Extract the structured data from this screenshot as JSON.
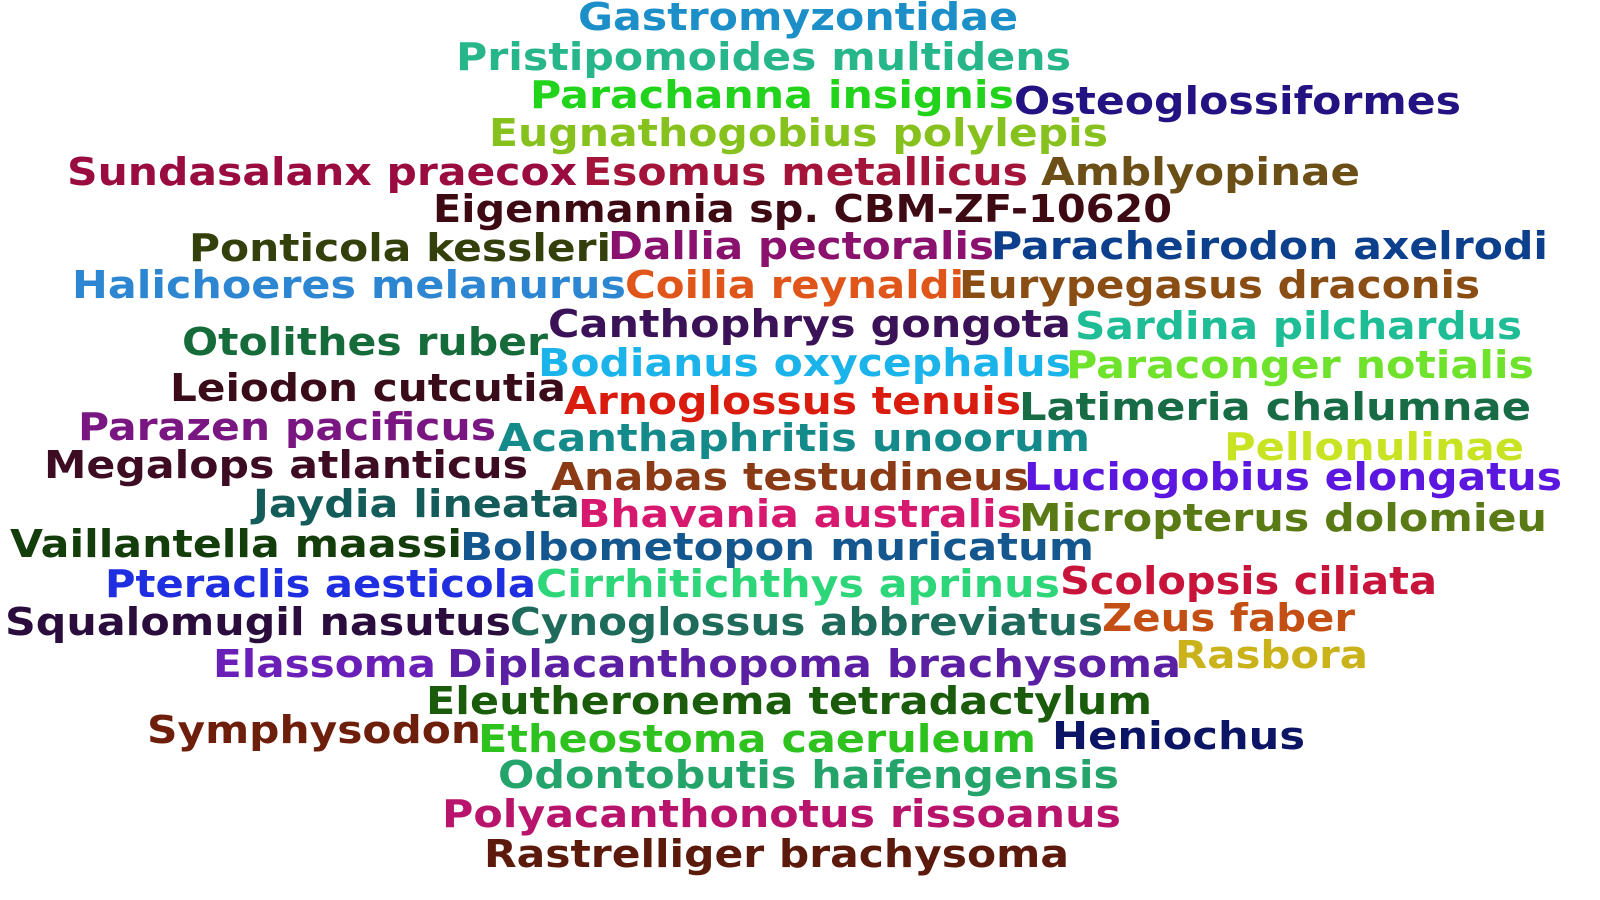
{
  "words": [
    {
      "text": "Gastromyzontidae",
      "color": "#1c8ec8"
    },
    {
      "text": "Pristipomoides multidens",
      "color": "#27b68a"
    },
    {
      "text": "Parachanna insignis",
      "color": "#21d41b"
    },
    {
      "text": "Osteoglossiformes",
      "color": "#231282"
    },
    {
      "text": "Eugnathogobius polylepis",
      "color": "#86c11e"
    },
    {
      "text": "Sundasalanx praecox",
      "color": "#9a0c3f"
    },
    {
      "text": "Esomus metallicus",
      "color": "#a3133a"
    },
    {
      "text": "Amblyopinae",
      "color": "#6b4f16"
    },
    {
      "text": "Eigenmannia sp. CBM-ZF-10620",
      "color": "#3d0a14"
    },
    {
      "text": "Ponticola kessleri",
      "color": "#33400b"
    },
    {
      "text": "Dallia pectoralis",
      "color": "#8a116e"
    },
    {
      "text": "Paracheirodon axelrodi",
      "color": "#0c3f8c"
    },
    {
      "text": "Halichoeres melanurus",
      "color": "#2c86d1"
    },
    {
      "text": "Coilia reynaldi",
      "color": "#e0551a"
    },
    {
      "text": "Eurypegasus draconis",
      "color": "#8a4d14"
    },
    {
      "text": "Canthophrys gongota",
      "color": "#3b1157"
    },
    {
      "text": "Sardina pilchardus",
      "color": "#1fbd95"
    },
    {
      "text": "Otolithes ruber",
      "color": "#166b3a"
    },
    {
      "text": "Bodianus oxycephalus",
      "color": "#1ab3ea"
    },
    {
      "text": "Paraconger notialis",
      "color": "#6fe22b"
    },
    {
      "text": "Leiodon cutcutia",
      "color": "#3a0c19"
    },
    {
      "text": "Arnoglossus tenuis",
      "color": "#d91c0e"
    },
    {
      "text": "Latimeria chalumnae",
      "color": "#176b45"
    },
    {
      "text": "Parazen pacificus",
      "color": "#7a1682"
    },
    {
      "text": "Acanthaphritis unoorum",
      "color": "#148a8a"
    },
    {
      "text": "Pellonulinae",
      "color": "#c8e322"
    },
    {
      "text": "Megalops atlanticus",
      "color": "#3d0c22"
    },
    {
      "text": "Anabas testudineus",
      "color": "#8a3a14"
    },
    {
      "text": "Luciogobius elongatus",
      "color": "#5b17e0"
    },
    {
      "text": "Jaydia lineata",
      "color": "#145c5a"
    },
    {
      "text": "Bhavania australis",
      "color": "#d6196e"
    },
    {
      "text": "Micropterus dolomieu",
      "color": "#597a14"
    },
    {
      "text": "Vaillantella maassi",
      "color": "#143d0c"
    },
    {
      "text": "Bolbometopon muricatum",
      "color": "#14578f"
    },
    {
      "text": "Pteraclis aesticola",
      "color": "#1f2ee0"
    },
    {
      "text": "Cirrhitichthys aprinus",
      "color": "#2ed67a"
    },
    {
      "text": "Scolopsis ciliata",
      "color": "#c8143a"
    },
    {
      "text": "Squalomugil nasutus",
      "color": "#2a0c3d"
    },
    {
      "text": "Cynoglossus abbreviatus",
      "color": "#1f6b5b"
    },
    {
      "text": "Zeus faber",
      "color": "#c44f14"
    },
    {
      "text": "Elassoma",
      "color": "#6a1fb8"
    },
    {
      "text": "Diplacanthopoma brachysoma",
      "color": "#5b1fa3"
    },
    {
      "text": "Rasbora",
      "color": "#c9b21a"
    },
    {
      "text": "Eleutheronema tetradactylum",
      "color": "#1a5c0c"
    },
    {
      "text": "Symphysodon",
      "color": "#6e1f0c"
    },
    {
      "text": "Etheostoma caeruleum",
      "color": "#2ec21f"
    },
    {
      "text": "Heniochus",
      "color": "#0c1466"
    },
    {
      "text": "Odontobutis haifengensis",
      "color": "#24a36b"
    },
    {
      "text": "Polyacanthonotus rissoanus",
      "color": "#b8146b"
    },
    {
      "text": "Rastrelliger brachysoma",
      "color": "#5c1a0c"
    }
  ]
}
